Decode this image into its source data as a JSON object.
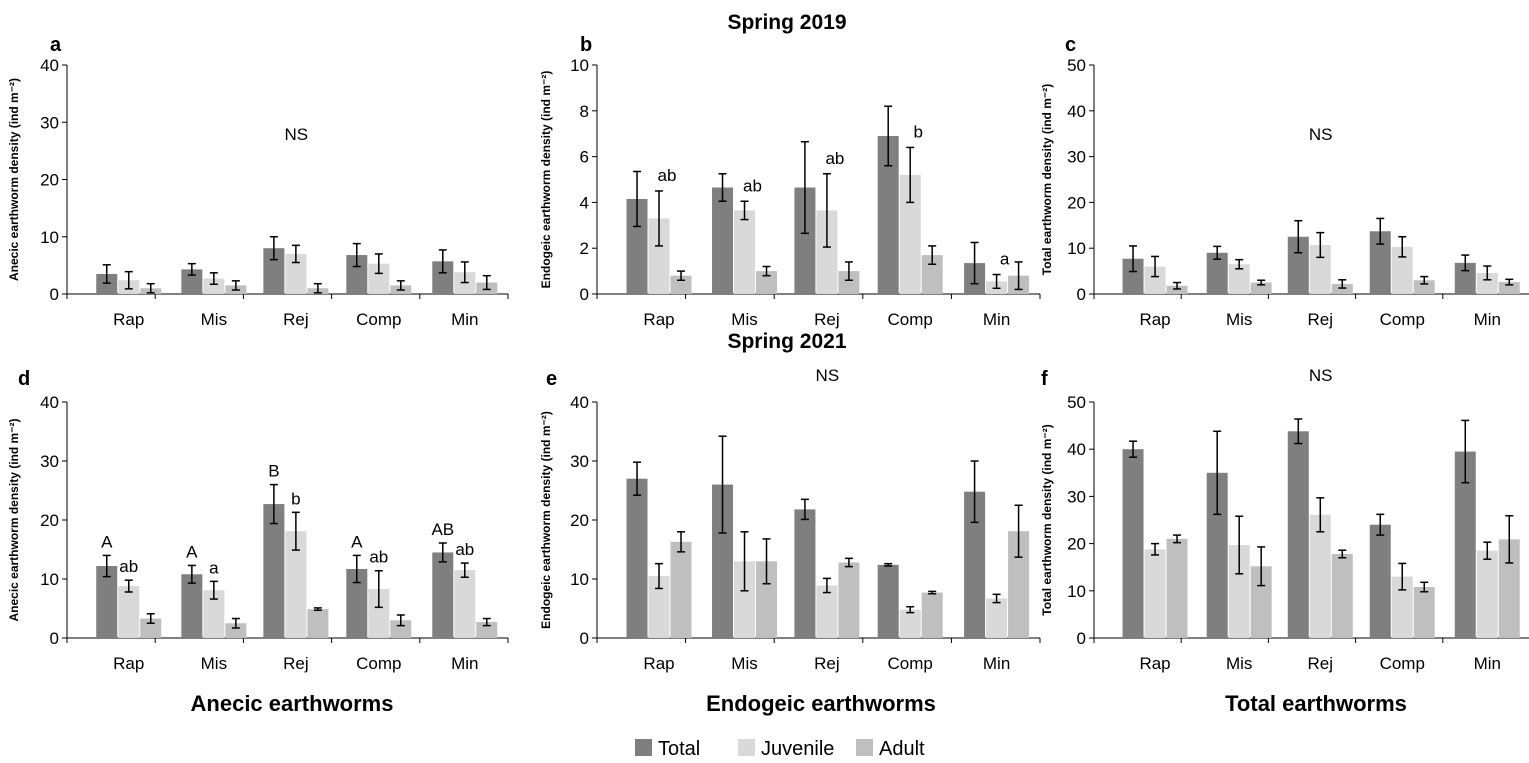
{
  "figure": {
    "row_titles": [
      "Spring 2019",
      "Spring 2021"
    ],
    "column_titles": [
      "Anecic earthworms",
      "Endogeic earthworms",
      "Total earthworms"
    ],
    "legend": [
      {
        "label": "Total",
        "color": "#7f7f7f"
      },
      {
        "label": "Juvenile",
        "color": "#d9d9d9"
      },
      {
        "label": "Adult",
        "color": "#bfbfbf"
      }
    ]
  },
  "chart_data": [
    {
      "panel": "a",
      "type": "bar",
      "ylabel": "Anecic earthworm density",
      "ylabel_unit": "(ind m⁻²)",
      "ylim": [
        0,
        40
      ],
      "yticks": [
        0,
        10,
        20,
        30,
        40
      ],
      "categories": [
        "Rap",
        "Mis",
        "Rej",
        "Comp",
        "Min"
      ],
      "series": [
        {
          "name": "Total",
          "values": [
            3.5,
            4.3,
            8.0,
            6.8,
            5.7
          ],
          "errors": [
            1.6,
            1.0,
            2.0,
            2.0,
            2.0
          ]
        },
        {
          "name": "Juvenile",
          "values": [
            2.4,
            2.7,
            7.0,
            5.3,
            3.8
          ],
          "errors": [
            1.5,
            1.0,
            1.5,
            1.7,
            1.8
          ]
        },
        {
          "name": "Adult",
          "values": [
            1.0,
            1.5,
            1.0,
            1.5,
            2.0
          ],
          "errors": [
            0.8,
            0.8,
            0.8,
            0.8,
            1.2
          ]
        }
      ],
      "annotations": [
        {
          "text": "NS"
        }
      ],
      "letters": [
        [],
        [],
        [],
        [],
        []
      ]
    },
    {
      "panel": "b",
      "type": "bar",
      "ylabel": "Endogeic earthworm density",
      "ylabel_unit": "(ind m⁻²)",
      "ylim": [
        0,
        10
      ],
      "yticks": [
        0,
        2,
        4,
        6,
        8,
        10
      ],
      "categories": [
        "Rap",
        "Mis",
        "Rej",
        "Comp",
        "Min"
      ],
      "series": [
        {
          "name": "Total",
          "values": [
            4.15,
            4.65,
            4.65,
            6.9,
            1.35
          ],
          "errors": [
            1.2,
            0.6,
            2.0,
            1.3,
            0.9
          ]
        },
        {
          "name": "Juvenile",
          "values": [
            3.3,
            3.65,
            3.65,
            5.2,
            0.55
          ],
          "errors": [
            1.2,
            0.4,
            1.6,
            1.2,
            0.3
          ]
        },
        {
          "name": "Adult",
          "values": [
            0.8,
            1.0,
            1.0,
            1.7,
            0.8
          ],
          "errors": [
            0.2,
            0.2,
            0.4,
            0.4,
            0.6
          ]
        }
      ],
      "annotations": [],
      "letters": [
        [
          "ab"
        ],
        [
          "ab"
        ],
        [
          "ab"
        ],
        [
          "b"
        ],
        [
          "a"
        ]
      ]
    },
    {
      "panel": "c",
      "type": "bar",
      "ylabel": "Total earthworm density",
      "ylabel_unit": "(ind m⁻²)",
      "ylim": [
        0,
        50
      ],
      "yticks": [
        0,
        10,
        20,
        30,
        40,
        50
      ],
      "categories": [
        "Rap",
        "Mis",
        "Rej",
        "Comp",
        "Min"
      ],
      "series": [
        {
          "name": "Total",
          "values": [
            7.7,
            9.0,
            12.5,
            13.7,
            6.8
          ],
          "errors": [
            2.8,
            1.4,
            3.5,
            2.8,
            1.7
          ]
        },
        {
          "name": "Juvenile",
          "values": [
            6.0,
            6.5,
            10.7,
            10.3,
            4.6
          ],
          "errors": [
            2.2,
            1.0,
            2.7,
            2.2,
            1.5
          ]
        },
        {
          "name": "Adult",
          "values": [
            1.8,
            2.5,
            2.2,
            3.0,
            2.6
          ],
          "errors": [
            0.7,
            0.5,
            0.9,
            0.8,
            0.6
          ]
        }
      ],
      "annotations": [
        {
          "text": "NS"
        }
      ],
      "letters": [
        [],
        [],
        [],
        [],
        []
      ]
    },
    {
      "panel": "d",
      "type": "bar",
      "ylabel": "Anecic earthworm density",
      "ylabel_unit": "(ind m⁻²)",
      "ylim": [
        0,
        40
      ],
      "yticks": [
        0,
        10,
        20,
        30,
        40
      ],
      "categories": [
        "Rap",
        "Mis",
        "Rej",
        "Comp",
        "Min"
      ],
      "series": [
        {
          "name": "Total",
          "values": [
            12.2,
            10.8,
            22.7,
            11.7,
            14.5
          ],
          "errors": [
            1.8,
            1.5,
            3.3,
            2.3,
            1.6
          ]
        },
        {
          "name": "Juvenile",
          "values": [
            8.8,
            8.1,
            18.1,
            8.3,
            11.5
          ],
          "errors": [
            1.0,
            1.5,
            3.2,
            3.1,
            1.2
          ]
        },
        {
          "name": "Adult",
          "values": [
            3.3,
            2.5,
            4.9,
            3.0,
            2.7
          ],
          "errors": [
            0.8,
            0.8,
            0.2,
            0.9,
            0.6
          ]
        }
      ],
      "annotations": [],
      "letters": [
        [
          "A",
          "ab"
        ],
        [
          "A",
          "a"
        ],
        [
          "B",
          "b"
        ],
        [
          "A",
          "ab"
        ],
        [
          "AB",
          "ab"
        ]
      ]
    },
    {
      "panel": "e",
      "type": "bar",
      "ylabel": "Endogeic earthworm density",
      "ylabel_unit": "(ind m⁻²)",
      "ylim": [
        0,
        40
      ],
      "yticks": [
        0,
        10,
        20,
        30,
        40
      ],
      "categories": [
        "Rap",
        "Mis",
        "Rej",
        "Comp",
        "Min"
      ],
      "series": [
        {
          "name": "Total",
          "values": [
            27.0,
            26.0,
            21.8,
            12.4,
            24.8
          ],
          "errors": [
            2.8,
            8.2,
            1.7,
            0.2,
            5.2
          ]
        },
        {
          "name": "Juvenile",
          "values": [
            10.5,
            13.0,
            8.9,
            4.8,
            6.7
          ],
          "errors": [
            2.1,
            5.0,
            1.2,
            0.5,
            0.7
          ]
        },
        {
          "name": "Adult",
          "values": [
            16.3,
            13.0,
            12.8,
            7.7,
            18.1
          ],
          "errors": [
            1.7,
            3.8,
            0.7,
            0.2,
            4.4
          ]
        }
      ],
      "annotations": [
        {
          "text": "NS"
        }
      ],
      "letters": [
        [],
        [],
        [],
        [],
        []
      ]
    },
    {
      "panel": "f",
      "type": "bar",
      "ylabel": "Total earthworm density",
      "ylabel_unit": "(ind m⁻²)",
      "ylim": [
        0,
        50
      ],
      "yticks": [
        0,
        10,
        20,
        30,
        40,
        50
      ],
      "categories": [
        "Rap",
        "Mis",
        "Rej",
        "Comp",
        "Min"
      ],
      "series": [
        {
          "name": "Total",
          "values": [
            40.0,
            35.0,
            43.8,
            24.0,
            39.5
          ],
          "errors": [
            1.7,
            8.8,
            2.6,
            2.2,
            6.6
          ]
        },
        {
          "name": "Juvenile",
          "values": [
            18.8,
            19.7,
            26.1,
            13.0,
            18.5
          ],
          "errors": [
            1.2,
            6.1,
            3.6,
            2.8,
            1.8
          ]
        },
        {
          "name": "Adult",
          "values": [
            21.0,
            15.2,
            17.8,
            10.8,
            20.9
          ],
          "errors": [
            0.8,
            4.1,
            0.8,
            1.0,
            5.0
          ]
        }
      ],
      "annotations": [
        {
          "text": "NS"
        }
      ],
      "letters": [
        [],
        [],
        [],
        [],
        []
      ]
    }
  ]
}
